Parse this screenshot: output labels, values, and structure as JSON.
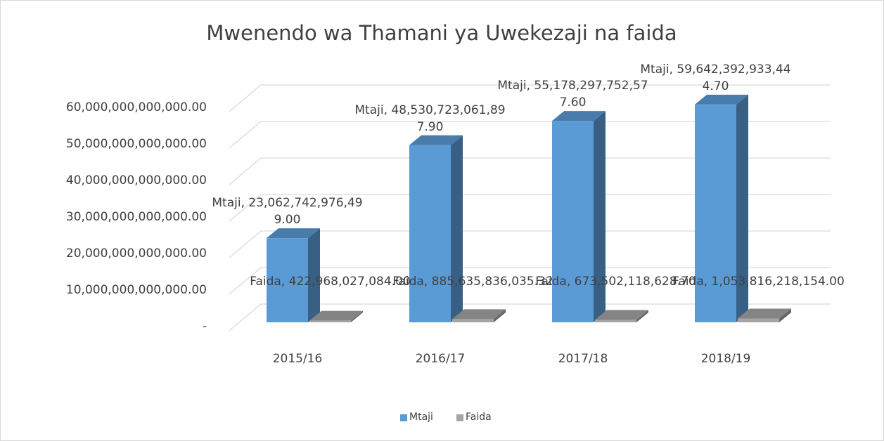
{
  "chart_data": {
    "type": "bar3d",
    "title": "Mwenendo wa Thamani ya Uwekezaji na faida",
    "categories": [
      "2015/16",
      "2016/17",
      "2017/18",
      "2018/19"
    ],
    "series": [
      {
        "name": "Mtaji",
        "color": "#5b9bd5",
        "values": [
          23062742976499.0,
          48530723061897.9,
          55178297752577.6,
          59642392933444.7
        ],
        "value_labels": [
          "Mtaji, 23,062,742,976,499.00",
          "Mtaji, 48,530,723,061,897.90",
          "Mtaji, 55,178,297,752,577.60",
          "Mtaji, 59,642,392,933,444.70"
        ]
      },
      {
        "name": "Faida",
        "color": "#a5a5a5",
        "values": [
          422968027084.0,
          885635836035.32,
          673502118628.7,
          1053816218154.0
        ],
        "value_labels": [
          "Faida, 422,968,027,084.00",
          "Faida, 885,635,836,035.32",
          "Faida, 673,502,118,628.70",
          "Faida, 1,053,816,218,154.00"
        ]
      }
    ],
    "ylim": [
      0,
      60000000000000
    ],
    "yticks": [
      {
        "value": 0,
        "label": "-"
      },
      {
        "value": 10000000000000,
        "label": "10,000,000,000,000.00"
      },
      {
        "value": 20000000000000,
        "label": "20,000,000,000,000.00"
      },
      {
        "value": 30000000000000,
        "label": "30,000,000,000,000.00"
      },
      {
        "value": 40000000000000,
        "label": "40,000,000,000,000.00"
      },
      {
        "value": 50000000000000,
        "label": "50,000,000,000,000.00"
      },
      {
        "value": 60000000000000,
        "label": "60,000,000,000,000.00"
      }
    ],
    "grid": true,
    "legend": "bottom"
  }
}
